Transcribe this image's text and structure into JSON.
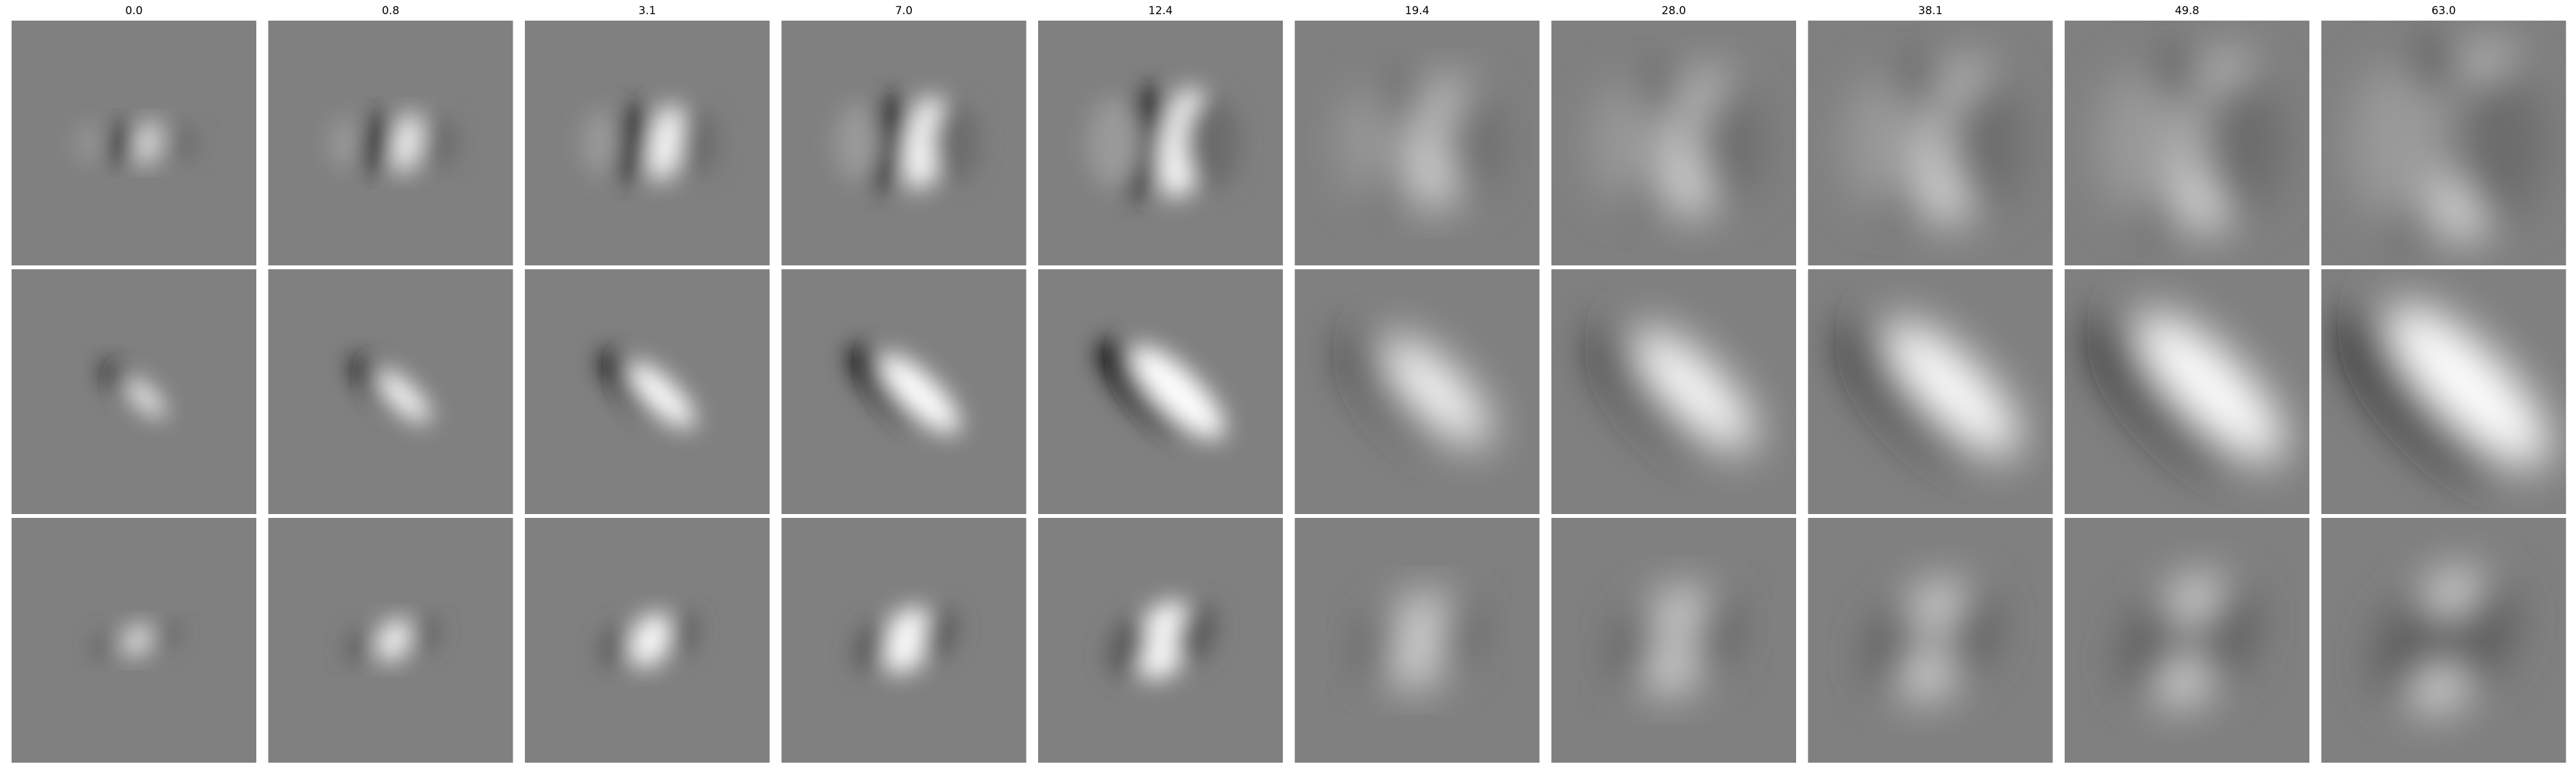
{
  "figure": {
    "column_titles": [
      "0.0",
      "0.8",
      "3.1",
      "7.0",
      "12.4",
      "19.4",
      "28.0",
      "38.1",
      "49.8",
      "63.0"
    ],
    "rows": 3,
    "colormap": "gray",
    "background_color": "#ffffff",
    "panel_base_color": "#808080"
  }
}
